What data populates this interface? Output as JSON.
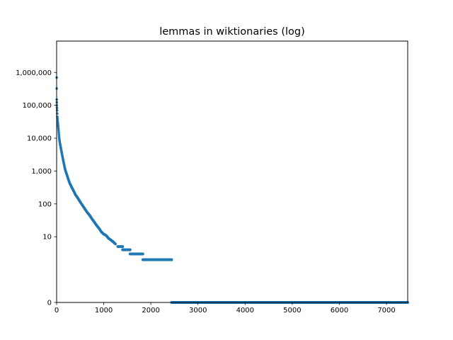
{
  "chart_data": {
    "type": "scatter",
    "title": "lemmas in wiktionaries (log)",
    "xlabel": "",
    "ylabel": "",
    "yscale": "symlog",
    "xlim": [
      0,
      7450
    ],
    "ylim": [
      0,
      9000000
    ],
    "grid": false,
    "legend": "none",
    "marker_color": "#1f77b4",
    "x_ticks": [
      0,
      1000,
      2000,
      3000,
      4000,
      5000,
      6000,
      7000
    ],
    "x_tick_labels": [
      "0",
      "1000",
      "2000",
      "3000",
      "4000",
      "5000",
      "6000",
      "7000"
    ],
    "y_ticks": [
      0,
      10,
      100,
      1000,
      10000,
      100000,
      1000000
    ],
    "y_tick_labels": [
      "0",
      "10",
      "100",
      "1,000",
      "10,000",
      "100,000",
      "1,000,000"
    ],
    "series": [
      {
        "segments": [
          {
            "x": 1,
            "y": 700000
          },
          {
            "x": 3,
            "y": 150000
          },
          {
            "x": 6,
            "y": 100000
          },
          {
            "x": 10,
            "y": 70000
          },
          {
            "x": 15,
            "y": 45000
          },
          {
            "x": 25,
            "y": 30000
          },
          {
            "x": 35,
            "y": 22000
          },
          {
            "x": 45,
            "y": 15000
          },
          {
            "x": 55,
            "y": 10000
          },
          {
            "x": 70,
            "y": 7000
          },
          {
            "x": 90,
            "y": 5000
          },
          {
            "x": 110,
            "y": 3500
          },
          {
            "x": 130,
            "y": 2500
          },
          {
            "x": 150,
            "y": 1800
          },
          {
            "x": 170,
            "y": 1300
          },
          {
            "x": 190,
            "y": 1000
          },
          {
            "x": 220,
            "y": 750
          },
          {
            "x": 250,
            "y": 550
          },
          {
            "x": 280,
            "y": 420
          },
          {
            "x": 320,
            "y": 320
          },
          {
            "x": 360,
            "y": 250
          },
          {
            "x": 400,
            "y": 190
          },
          {
            "x": 450,
            "y": 150
          },
          {
            "x": 500,
            "y": 115
          },
          {
            "x": 550,
            "y": 90
          },
          {
            "x": 600,
            "y": 70
          },
          {
            "x": 650,
            "y": 55
          },
          {
            "x": 700,
            "y": 45
          },
          {
            "x": 750,
            "y": 35
          },
          {
            "x": 800,
            "y": 28
          },
          {
            "x": 850,
            "y": 22
          },
          {
            "x": 900,
            "y": 18
          },
          {
            "x": 950,
            "y": 14
          },
          {
            "x": 1000,
            "y": 12
          },
          {
            "x": 1050,
            "y": 11
          },
          {
            "x": 1100,
            "y": 9
          },
          {
            "x": 1150,
            "y": 8
          },
          {
            "x": 1200,
            "y": 7
          },
          {
            "x": 1250,
            "y": 6
          }
        ],
        "steps": [
          {
            "x0": 1300,
            "x1": 1400,
            "y": 5
          },
          {
            "x0": 1400,
            "x1": 1560,
            "y": 4
          },
          {
            "x0": 1560,
            "x1": 1830,
            "y": 3
          },
          {
            "x0": 1830,
            "x1": 2440,
            "y": 2
          },
          {
            "x0": 2440,
            "x1": 7450,
            "y": 0
          }
        ]
      }
    ]
  }
}
